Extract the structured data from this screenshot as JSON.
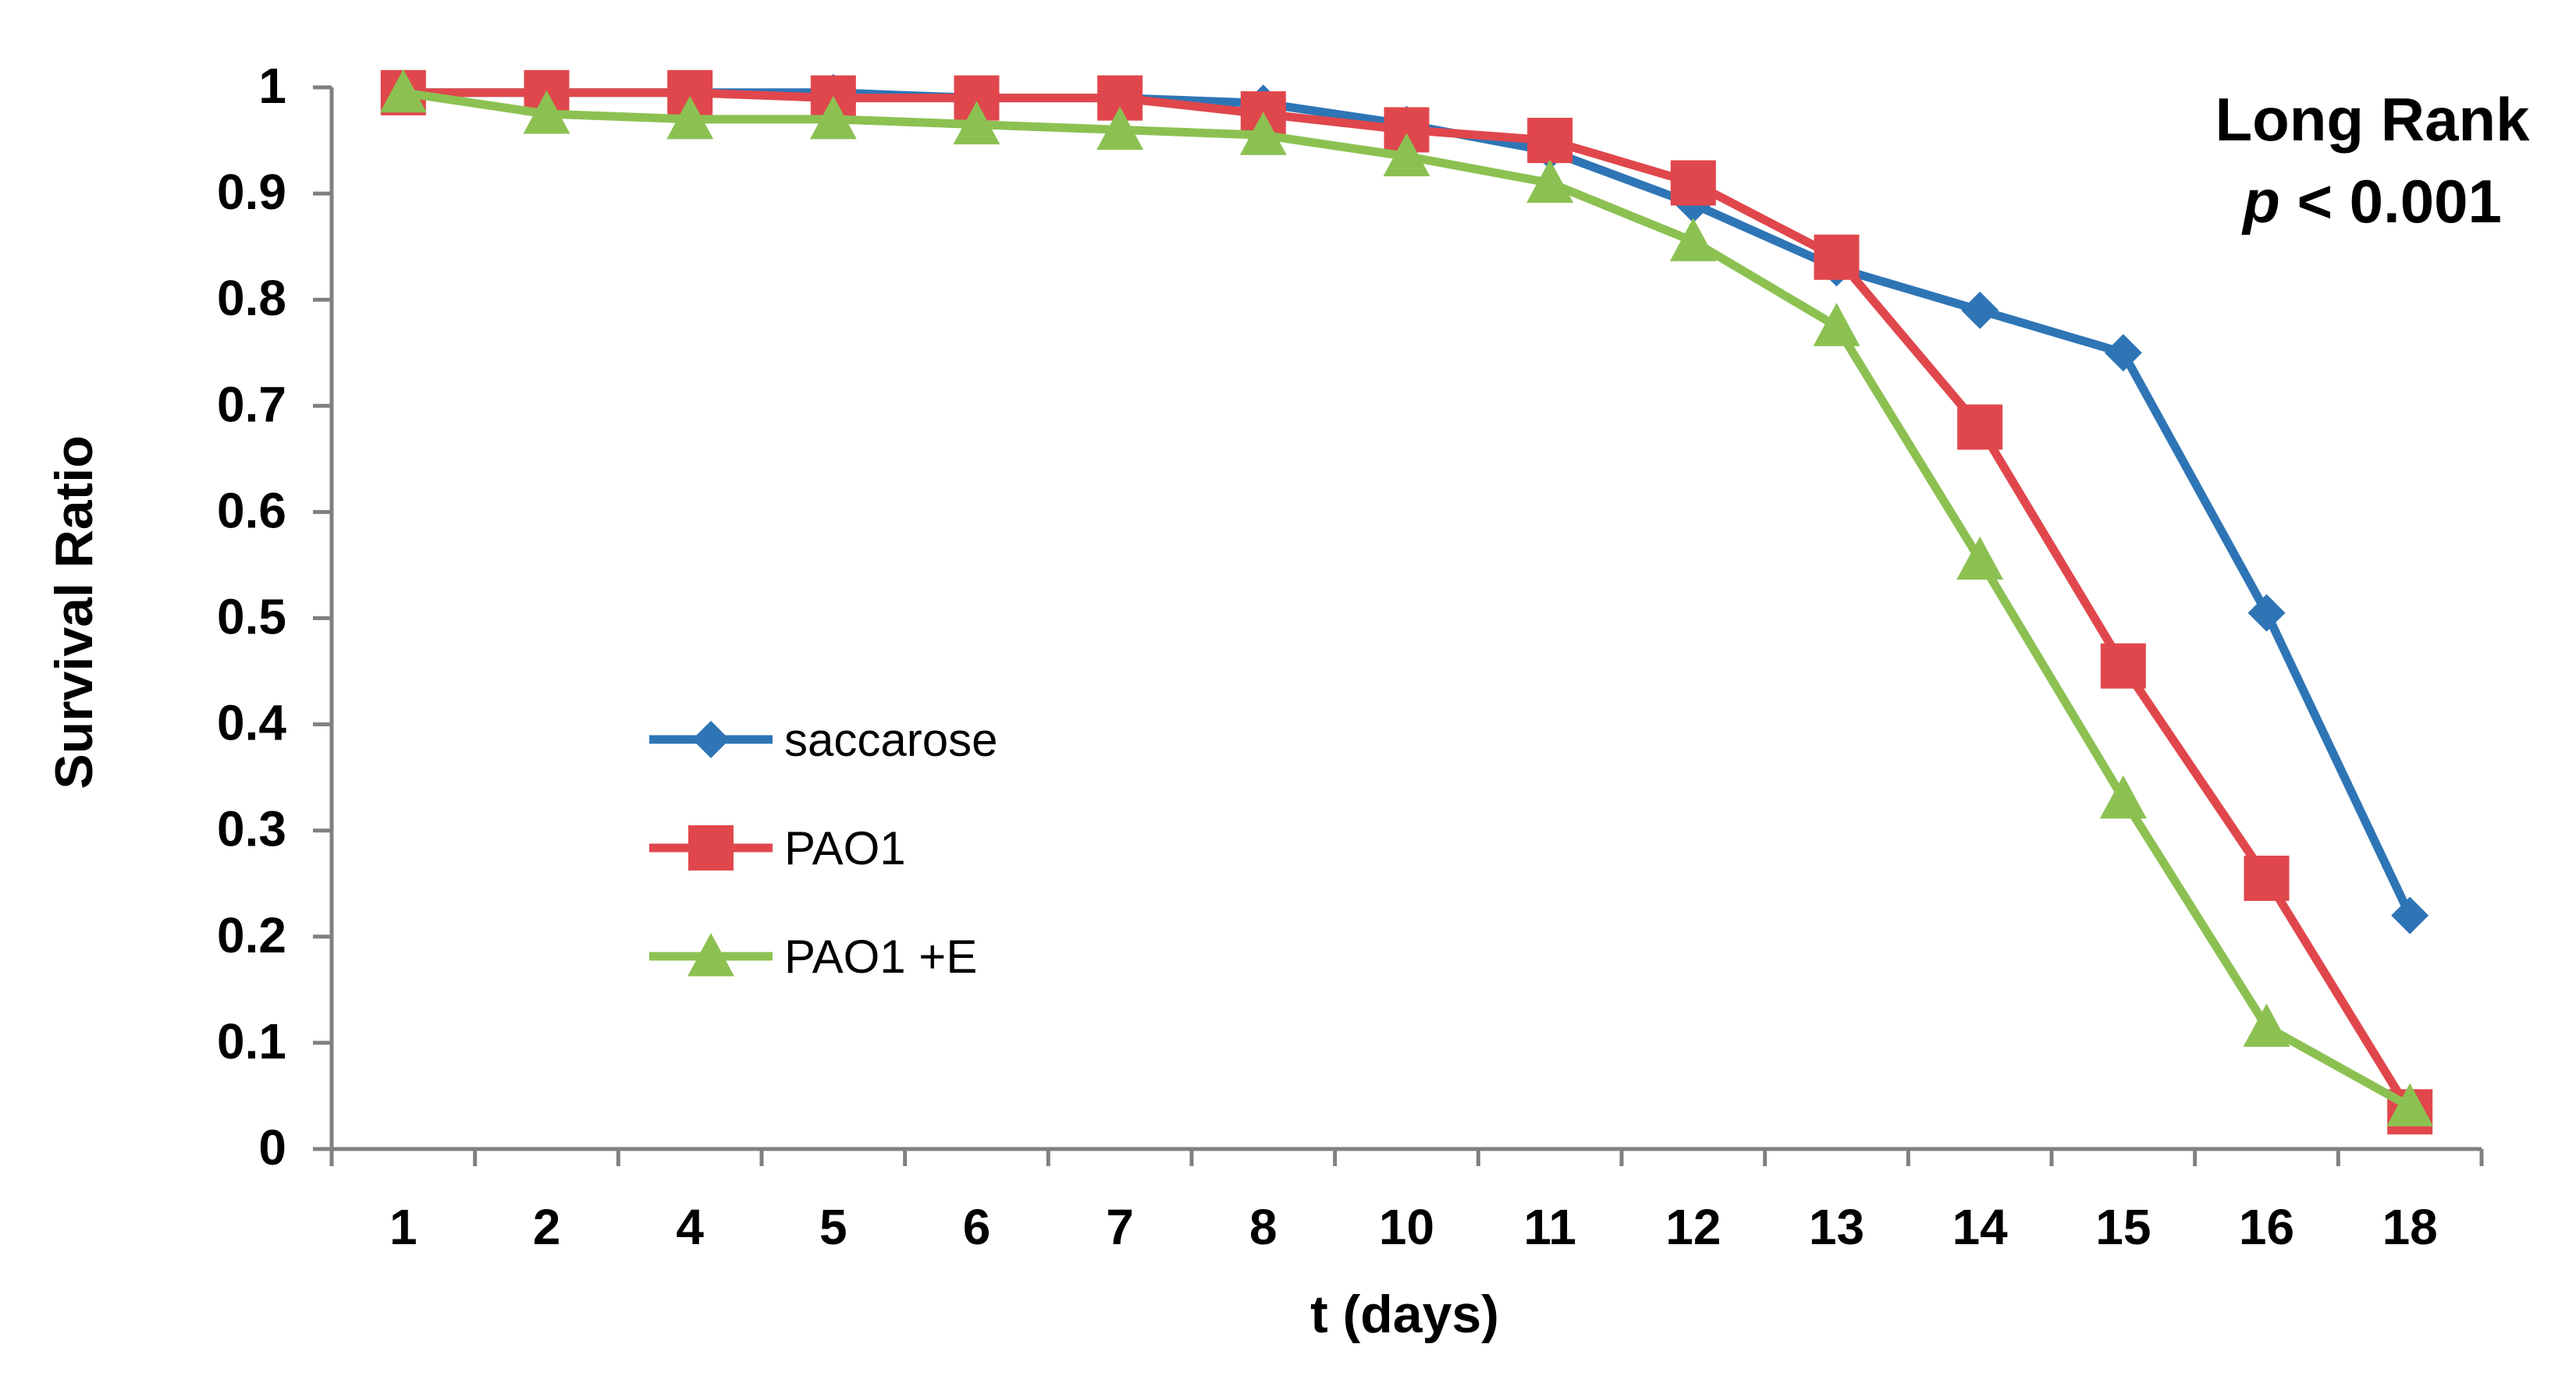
{
  "chart_data": {
    "type": "line",
    "title": "",
    "xlabel": "t (days)",
    "ylabel": "Survival Ratio",
    "categories": [
      "1",
      "2",
      "4",
      "5",
      "6",
      "7",
      "8",
      "10",
      "11",
      "12",
      "13",
      "14",
      "15",
      "16",
      "18"
    ],
    "ylim": [
      0,
      1
    ],
    "yticks": [
      "0",
      "0.1",
      "0.2",
      "0.3",
      "0.4",
      "0.5",
      "0.6",
      "0.7",
      "0.8",
      "0.9",
      "1"
    ],
    "grid": false,
    "legend_position": "left-center",
    "series": [
      {
        "name": "saccarose",
        "color": "#2e75b6",
        "marker": "diamond",
        "values": [
          0.995,
          0.995,
          0.995,
          0.995,
          0.99,
          0.99,
          0.985,
          0.965,
          0.94,
          0.89,
          0.83,
          0.79,
          0.75,
          0.505,
          0.22
        ]
      },
      {
        "name": "PAO1",
        "color": "#e0474c",
        "marker": "square",
        "values": [
          0.995,
          0.995,
          0.995,
          0.99,
          0.99,
          0.99,
          0.975,
          0.96,
          0.95,
          0.91,
          0.84,
          0.68,
          0.455,
          0.255,
          0.035
        ]
      },
      {
        "name": "PAO1 +E",
        "color": "#8cc152",
        "marker": "triangle",
        "values": [
          0.995,
          0.975,
          0.97,
          0.97,
          0.965,
          0.96,
          0.955,
          0.935,
          0.91,
          0.855,
          0.775,
          0.555,
          0.33,
          0.115,
          0.04
        ]
      }
    ],
    "annotation": {
      "line1": "Long Rank",
      "line2_italic": "p",
      "line2_rest": " < 0.001"
    }
  }
}
